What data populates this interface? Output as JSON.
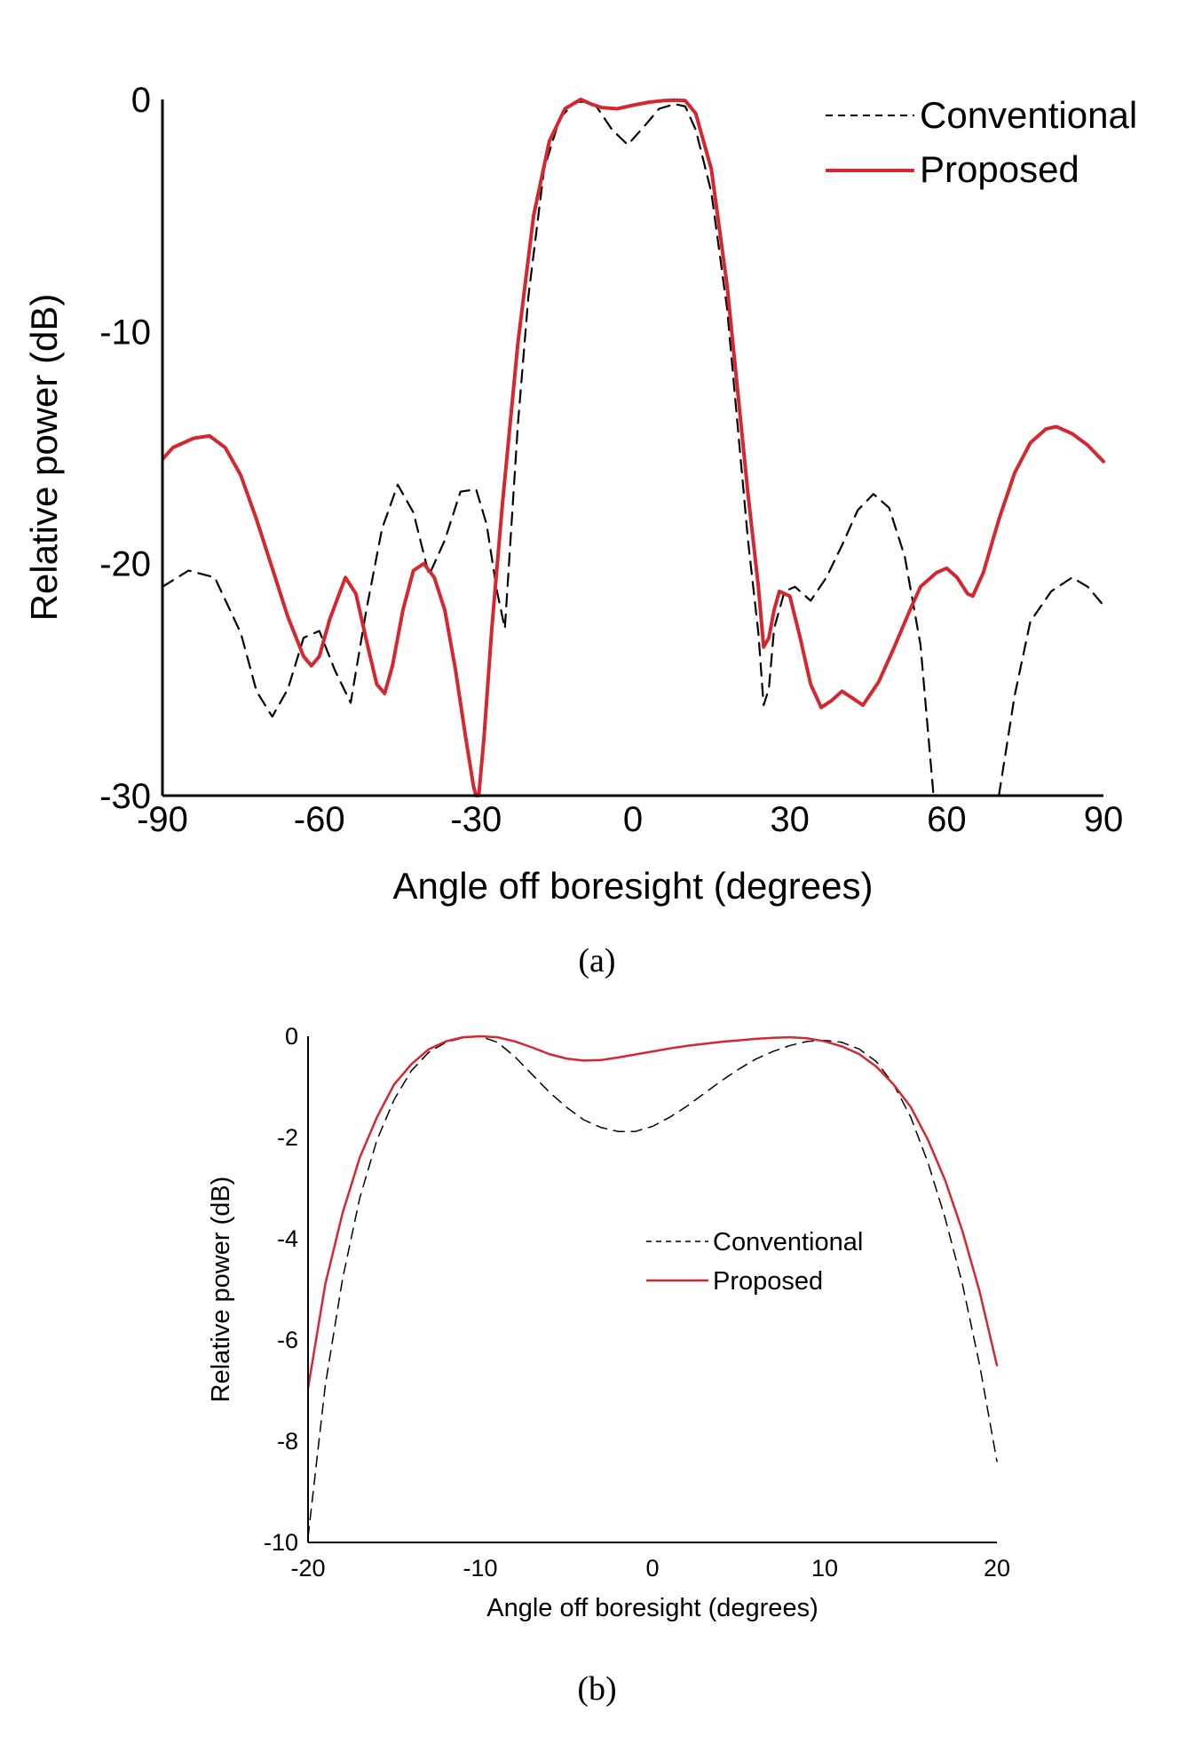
{
  "chart_data": [
    {
      "type": "line",
      "xlabel": "Angle off boresight (degrees)",
      "ylabel": "Relative power (dB)",
      "xlim": [
        -90,
        90
      ],
      "ylim": [
        -30,
        0
      ],
      "xticks": [
        "-90",
        "-60",
        "-30",
        "0",
        "30",
        "60",
        "90"
      ],
      "yticks": [
        "0",
        "-10",
        "-20",
        "-30"
      ],
      "legend_position": "top-right",
      "grid": false,
      "series": [
        {
          "name": "Conventional",
          "style": "dashed",
          "color": "#000000",
          "x": [
            -90,
            -85,
            -80,
            -75,
            -72,
            -69,
            -66,
            -63,
            -60,
            -57,
            -54,
            -51,
            -48,
            -45,
            -42,
            -39,
            -36,
            -33,
            -30,
            -28,
            -26,
            -24.5,
            -22,
            -20,
            -17,
            -14,
            -11,
            -9,
            -7,
            -4,
            -1,
            2,
            5,
            8,
            10,
            12,
            15,
            18,
            20,
            22,
            24,
            25,
            26,
            27,
            29,
            31,
            34,
            37,
            40,
            43,
            46,
            49,
            52,
            55,
            57.5,
            60,
            65,
            70,
            73,
            76,
            80,
            84,
            87,
            90
          ],
          "y": [
            -21,
            -20.3,
            -20.6,
            -23,
            -25.5,
            -26.6,
            -25.4,
            -23.2,
            -22.9,
            -24.6,
            -26,
            -22,
            -18.5,
            -16.6,
            -17.8,
            -20.5,
            -19,
            -16.9,
            -16.8,
            -18.3,
            -21.2,
            -22.8,
            -14,
            -8.5,
            -3,
            -0.8,
            -0.1,
            -0.1,
            -0.3,
            -1.3,
            -1.95,
            -1.2,
            -0.4,
            -0.2,
            -0.3,
            -1.3,
            -4,
            -9,
            -14,
            -19,
            -23,
            -26.1,
            -25.4,
            -22.8,
            -21.2,
            -21,
            -21.6,
            -20.6,
            -19.2,
            -17.7,
            -17,
            -17.6,
            -19.7,
            -23.5,
            -30,
            -30,
            -30,
            -30,
            -25.7,
            -22.5,
            -21.2,
            -20.6,
            -21,
            -21.8
          ]
        },
        {
          "name": "Proposed",
          "style": "solid",
          "color": "#d6262e",
          "x": [
            -90,
            -88,
            -84,
            -81,
            -78,
            -75,
            -72,
            -69,
            -66,
            -63,
            -61.5,
            -60,
            -58,
            -55,
            -53,
            -51,
            -49,
            -47.5,
            -46,
            -44,
            -42,
            -40,
            -38,
            -36,
            -34,
            -32,
            -30.5,
            -30,
            -29.5,
            -28.5,
            -27,
            -25,
            -22,
            -19,
            -16,
            -13,
            -10,
            -8,
            -6,
            -3,
            0,
            3,
            6,
            8,
            10,
            12,
            15,
            18,
            20,
            22,
            24,
            25,
            26,
            27,
            28,
            30,
            32,
            34,
            36,
            38,
            40,
            42,
            44,
            47,
            50,
            53,
            55,
            58,
            60,
            62,
            64,
            65,
            67,
            70,
            73,
            76,
            79,
            81,
            84,
            87,
            90
          ],
          "y": [
            -15.5,
            -15.0,
            -14.6,
            -14.5,
            -15.0,
            -16.2,
            -18.1,
            -20.2,
            -22.3,
            -24.0,
            -24.4,
            -24.0,
            -22.4,
            -20.6,
            -21.3,
            -23.3,
            -25.2,
            -25.6,
            -24.4,
            -22.0,
            -20.3,
            -20.0,
            -20.6,
            -22.0,
            -24.5,
            -27.5,
            -29.6,
            -30,
            -30,
            -27.5,
            -22.8,
            -17.5,
            -10.5,
            -5.0,
            -1.8,
            -0.4,
            0,
            -0.2,
            -0.35,
            -0.4,
            -0.25,
            -0.12,
            -0.05,
            -0.03,
            -0.05,
            -0.6,
            -3.0,
            -8.0,
            -12.5,
            -17.0,
            -21.0,
            -23.6,
            -23.2,
            -22.0,
            -21.2,
            -21.4,
            -23.2,
            -25.2,
            -26.2,
            -25.9,
            -25.5,
            -25.8,
            -26.1,
            -25.1,
            -23.6,
            -22.0,
            -21.0,
            -20.4,
            -20.2,
            -20.6,
            -21.3,
            -21.4,
            -20.4,
            -18.1,
            -16.1,
            -14.8,
            -14.2,
            -14.1,
            -14.4,
            -14.9,
            -15.6
          ]
        }
      ]
    },
    {
      "type": "line",
      "xlabel": "Angle off boresight (degrees)",
      "ylabel": "Relative power (dB)",
      "xlim": [
        -20,
        20
      ],
      "ylim": [
        -10,
        0
      ],
      "xticks": [
        "-20",
        "-10",
        "0",
        "10",
        "20"
      ],
      "yticks": [
        "0",
        "-2",
        "-4",
        "-6",
        "-8",
        "-10"
      ],
      "legend_position": "right",
      "grid": false,
      "series": [
        {
          "name": "Conventional",
          "style": "dashed",
          "color": "#000000",
          "x": [
            -20,
            -19,
            -18,
            -17,
            -16,
            -15,
            -14,
            -13,
            -12,
            -11,
            -10,
            -9,
            -8,
            -7,
            -6,
            -5,
            -4,
            -3,
            -2,
            -1,
            0,
            1,
            2,
            3,
            4,
            5,
            6,
            7,
            8,
            9,
            10,
            11,
            12,
            13,
            14,
            15,
            16,
            17,
            18,
            19,
            20
          ],
          "y": [
            -9.9,
            -6.9,
            -4.8,
            -3.2,
            -2.05,
            -1.25,
            -0.68,
            -0.32,
            -0.12,
            -0.03,
            0,
            -0.12,
            -0.4,
            -0.75,
            -1.1,
            -1.4,
            -1.65,
            -1.8,
            -1.88,
            -1.88,
            -1.78,
            -1.6,
            -1.38,
            -1.13,
            -0.88,
            -0.65,
            -0.45,
            -0.3,
            -0.18,
            -0.1,
            -0.08,
            -0.12,
            -0.25,
            -0.5,
            -0.95,
            -1.6,
            -2.5,
            -3.6,
            -4.9,
            -6.5,
            -8.4
          ]
        },
        {
          "name": "Proposed",
          "style": "solid",
          "color": "#d6262e",
          "x": [
            -20,
            -19,
            -18,
            -17,
            -16,
            -15,
            -14,
            -13,
            -12,
            -11,
            -10,
            -9,
            -8,
            -7,
            -6,
            -5,
            -4,
            -3,
            -2,
            -1,
            0,
            1,
            2,
            3,
            4,
            5,
            6,
            7,
            8,
            9,
            10,
            11,
            12,
            13,
            14,
            15,
            16,
            17,
            18,
            19,
            20
          ],
          "y": [
            -6.95,
            -4.9,
            -3.5,
            -2.4,
            -1.6,
            -0.95,
            -0.55,
            -0.26,
            -0.1,
            -0.02,
            0,
            -0.02,
            -0.1,
            -0.22,
            -0.35,
            -0.44,
            -0.48,
            -0.47,
            -0.42,
            -0.36,
            -0.3,
            -0.24,
            -0.19,
            -0.15,
            -0.11,
            -0.08,
            -0.05,
            -0.03,
            -0.02,
            -0.04,
            -0.1,
            -0.2,
            -0.35,
            -0.6,
            -0.95,
            -1.4,
            -2.05,
            -2.85,
            -3.85,
            -5.05,
            -6.5
          ]
        }
      ]
    }
  ],
  "captions": [
    "(a)",
    "(b)"
  ]
}
